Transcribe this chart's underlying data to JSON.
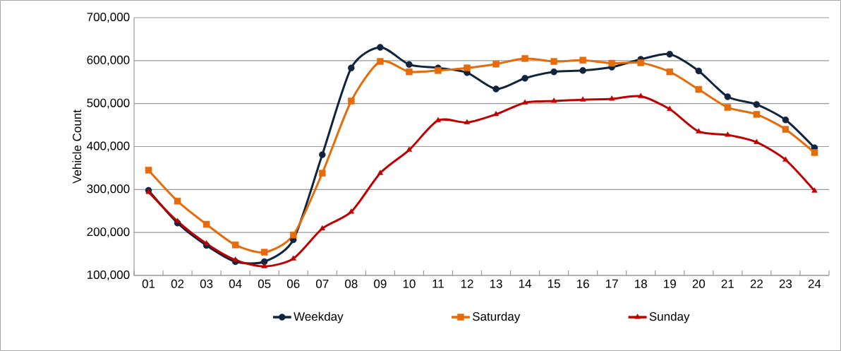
{
  "chart_data": {
    "type": "line",
    "ylabel": "Vehicle  Count",
    "categories": [
      "01",
      "02",
      "03",
      "04",
      "05",
      "06",
      "07",
      "08",
      "09",
      "10",
      "11",
      "12",
      "13",
      "14",
      "15",
      "16",
      "17",
      "18",
      "19",
      "20",
      "21",
      "22",
      "23",
      "24"
    ],
    "series": [
      {
        "name": "Weekday",
        "color": "#10243e",
        "marker": "circle",
        "values": [
          298000,
          222000,
          170000,
          132000,
          132000,
          183000,
          381000,
          583000,
          631000,
          591000,
          583000,
          572000,
          534000,
          559000,
          574000,
          577000,
          585000,
          603000,
          615000,
          576000,
          516000,
          498000,
          462000,
          397000
        ]
      },
      {
        "name": "Saturday",
        "color": "#e46c0a",
        "marker": "square",
        "values": [
          345000,
          273000,
          219000,
          171000,
          154000,
          194000,
          338000,
          506000,
          598000,
          574000,
          577000,
          583000,
          592000,
          605000,
          598000,
          601000,
          594000,
          595000,
          574000,
          533000,
          491000,
          475000,
          440000,
          386000
        ]
      },
      {
        "name": "Sunday",
        "color": "#c00000",
        "marker": "triangle",
        "values": [
          294000,
          226000,
          174000,
          136000,
          121000,
          139000,
          209000,
          248000,
          338000,
          392000,
          461000,
          456000,
          475000,
          502000,
          506000,
          509000,
          511000,
          517000,
          487000,
          435000,
          427000,
          410000,
          369000,
          297000
        ]
      }
    ],
    "ylim": [
      100000,
      700000
    ],
    "yticks": [
      {
        "value": 100000,
        "label": "100,000"
      },
      {
        "value": 200000,
        "label": "200,000"
      },
      {
        "value": 300000,
        "label": "300,000"
      },
      {
        "value": 400000,
        "label": "400,000"
      },
      {
        "value": 500000,
        "label": "500,000"
      },
      {
        "value": 600000,
        "label": "600,000"
      },
      {
        "value": 700000,
        "label": "700,000"
      }
    ],
    "grid": "y",
    "legend": "bottom"
  }
}
